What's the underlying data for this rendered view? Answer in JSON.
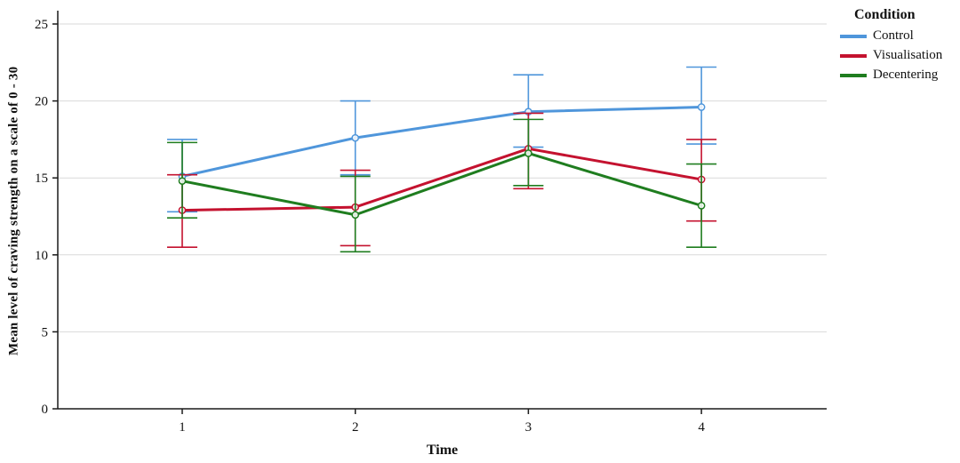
{
  "figure": {
    "background": "#ffffff",
    "axis_color": "#1a1a1a",
    "grid_color": "#d9d9d9"
  },
  "chart_data": {
    "type": "line",
    "title": "",
    "xlabel": "Time",
    "ylabel": "Mean level of craving strength on a scale of 0 - 30",
    "x_categories": [
      "1",
      "2",
      "3",
      "4"
    ],
    "yticks": [
      0,
      5,
      10,
      15,
      20,
      25
    ],
    "ylim": [
      0,
      25.5
    ],
    "grid": "horizontal",
    "legend_title": "Condition",
    "legend_position": "top-right",
    "error_bars": true,
    "series": [
      {
        "name": "Control",
        "color": "#4F96DB",
        "values": [
          15.1,
          17.6,
          19.3,
          19.6
        ],
        "err_low": [
          12.8,
          15.2,
          17.0,
          17.2
        ],
        "err_high": [
          17.5,
          20.0,
          21.7,
          22.2
        ]
      },
      {
        "name": "Visualisation",
        "color": "#C4122F",
        "values": [
          12.9,
          13.1,
          16.9,
          14.9
        ],
        "err_low": [
          10.5,
          10.6,
          14.3,
          12.2
        ],
        "err_high": [
          15.2,
          15.5,
          19.2,
          17.5
        ]
      },
      {
        "name": "Decentering",
        "color": "#1F7D1F",
        "values": [
          14.8,
          12.6,
          16.6,
          13.2
        ],
        "err_low": [
          12.4,
          10.2,
          14.5,
          10.5
        ],
        "err_high": [
          17.3,
          15.1,
          18.8,
          15.9
        ]
      }
    ]
  }
}
